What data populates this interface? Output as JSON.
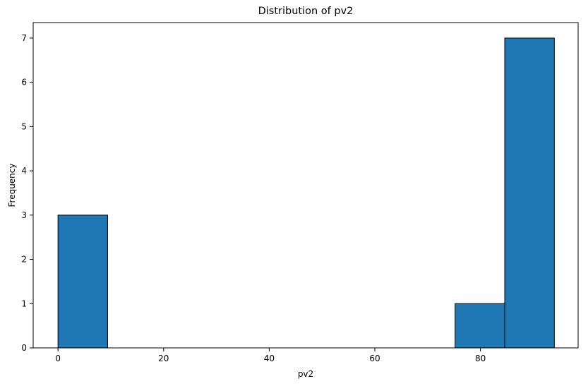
{
  "chart_data": {
    "type": "bar",
    "title": "Distribution of pv2",
    "xlabel": "pv2",
    "ylabel": "Frequency",
    "xlim": [
      -4.7,
      98.5
    ],
    "ylim": [
      0,
      7.35
    ],
    "xticks": [
      0,
      20,
      40,
      60,
      80
    ],
    "yticks": [
      0,
      1,
      2,
      3,
      4,
      5,
      6,
      7
    ],
    "bins": [
      {
        "x0": 0.0,
        "x1": 9.4,
        "count": 3
      },
      {
        "x0": 9.4,
        "x1": 18.8,
        "count": 0
      },
      {
        "x0": 18.8,
        "x1": 28.2,
        "count": 0
      },
      {
        "x0": 28.2,
        "x1": 37.6,
        "count": 0
      },
      {
        "x0": 37.6,
        "x1": 47.0,
        "count": 0
      },
      {
        "x0": 47.0,
        "x1": 56.4,
        "count": 0
      },
      {
        "x0": 56.4,
        "x1": 65.8,
        "count": 0
      },
      {
        "x0": 65.8,
        "x1": 75.2,
        "count": 0
      },
      {
        "x0": 75.2,
        "x1": 84.6,
        "count": 1
      },
      {
        "x0": 84.6,
        "x1": 94.0,
        "count": 7
      }
    ],
    "bar_color": "#1f77b4",
    "edge_color": "#000000",
    "grid": false
  }
}
